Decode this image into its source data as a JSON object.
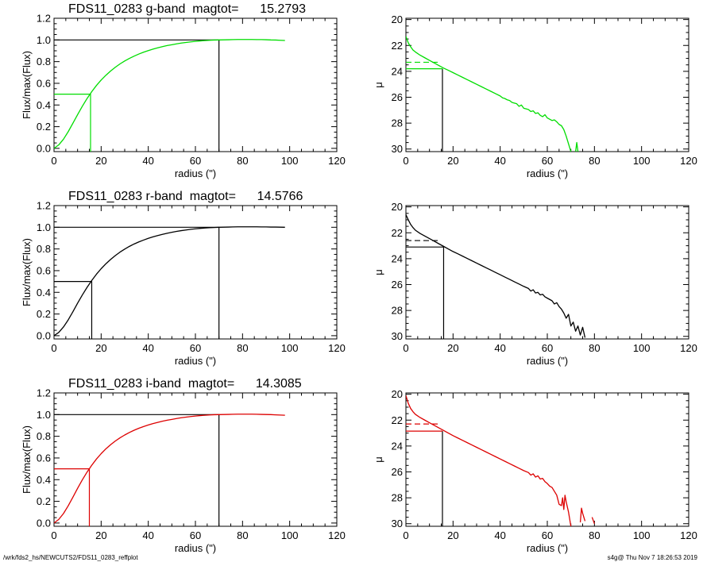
{
  "footer": {
    "left": "/wrk/fds2_hs/NEWCUTS2/FDS11_0283_reffplot",
    "right": "s4g@  Thu Nov  7 18:26:53 2019"
  },
  "colors": {
    "g": "#00dd00",
    "r": "#000000",
    "i": "#dd0000",
    "frame": "#000000"
  },
  "chart_data": [
    {
      "type": "line",
      "panel": "g-band-growth-curve",
      "title": "FDS11_0283 g-band  magtot=      15.2793",
      "xlabel": "radius (\")",
      "ylabel": "Flux/max(Flux)",
      "xlim": [
        0,
        120
      ],
      "ylim": [
        -0.03,
        1.2
      ],
      "xticks": [
        "0",
        "20",
        "40",
        "60",
        "80",
        "100",
        "120"
      ],
      "yticks": [
        "0.0",
        "0.2",
        "0.4",
        "0.6",
        "0.8",
        "1.0",
        "1.2"
      ],
      "series": [
        {
          "color": "#00dd00",
          "x": [
            0,
            2,
            4,
            6,
            8,
            10,
            12,
            14,
            16,
            18,
            20,
            22,
            24,
            26,
            28,
            30,
            32,
            34,
            36,
            38,
            40,
            42,
            44,
            46,
            48,
            50,
            52,
            54,
            56,
            58,
            60,
            62,
            64,
            66,
            68,
            70,
            72,
            74,
            76,
            78,
            80,
            82,
            84,
            86,
            88,
            90,
            92,
            94,
            96,
            98
          ],
          "y": [
            0.0,
            0.032,
            0.084,
            0.153,
            0.231,
            0.311,
            0.388,
            0.459,
            0.523,
            0.58,
            0.63,
            0.674,
            0.713,
            0.748,
            0.779,
            0.806,
            0.83,
            0.851,
            0.87,
            0.887,
            0.902,
            0.915,
            0.927,
            0.938,
            0.948,
            0.956,
            0.964,
            0.971,
            0.977,
            0.982,
            0.987,
            0.991,
            0.994,
            0.997,
            0.999,
            1.0,
            1.001,
            1.002,
            1.003,
            1.004,
            1.004,
            1.004,
            1.004,
            1.003,
            1.003,
            1.002,
            1.0,
            0.999,
            0.997,
            0.995
          ]
        }
      ],
      "guides": {
        "half_light": {
          "x": 15.5,
          "y": 0.5,
          "color": "#00dd00"
        },
        "total": {
          "x": 70,
          "y": 1.0,
          "color": "#000000"
        }
      }
    },
    {
      "type": "line",
      "panel": "g-band-surface-brightness",
      "title": "",
      "xlabel": "radius (\")",
      "ylabel": "μ",
      "xlim": [
        0,
        120
      ],
      "ylim": [
        30.2,
        19.9
      ],
      "xticks": [
        "0",
        "20",
        "40",
        "60",
        "80",
        "100",
        "120"
      ],
      "yticks": [
        "20",
        "22",
        "24",
        "26",
        "28",
        "30"
      ],
      "series": [
        {
          "color": "#00dd00",
          "x": [
            0,
            1,
            2,
            3,
            4,
            6,
            8,
            10,
            12,
            14,
            16,
            18,
            20,
            22,
            24,
            26,
            28,
            30,
            32,
            34,
            36,
            38,
            40,
            41,
            42,
            43,
            44,
            45,
            46,
            47,
            48,
            49,
            50,
            51,
            52,
            53,
            54,
            55,
            56,
            57,
            58,
            59,
            60,
            61,
            62,
            63,
            64,
            65,
            66,
            67,
            68,
            69,
            70,
            null,
            72,
            72.5,
            73
          ],
          "y": [
            21.3,
            21.8,
            22.1,
            22.35,
            22.5,
            22.75,
            22.95,
            23.15,
            23.35,
            23.55,
            23.75,
            23.92,
            24.1,
            24.28,
            24.46,
            24.64,
            24.82,
            25.0,
            25.18,
            25.36,
            25.54,
            25.72,
            25.9,
            26.05,
            26.1,
            26.2,
            26.25,
            26.4,
            26.45,
            26.5,
            26.7,
            26.6,
            26.85,
            26.9,
            26.95,
            27.1,
            27.05,
            27.25,
            27.2,
            27.4,
            27.5,
            27.35,
            27.6,
            27.7,
            27.8,
            27.75,
            27.9,
            28.1,
            28.2,
            28.5,
            29.0,
            29.6,
            30.2,
            null,
            30.2,
            29.5,
            30.2
          ]
        }
      ],
      "guides": {
        "mu_eff": {
          "x": 15.5,
          "y": 23.8
        },
        "mu_mean_eff_dashed": {
          "x_end": 14,
          "y": 23.3
        }
      }
    },
    {
      "type": "line",
      "panel": "r-band-growth-curve",
      "title": "FDS11_0283 r-band  magtot=      14.5766",
      "xlabel": "radius (\")",
      "ylabel": "Flux/max(Flux)",
      "xlim": [
        0,
        120
      ],
      "ylim": [
        -0.03,
        1.2
      ],
      "xticks": [
        "0",
        "20",
        "40",
        "60",
        "80",
        "100",
        "120"
      ],
      "yticks": [
        "0.0",
        "0.2",
        "0.4",
        "0.6",
        "0.8",
        "1.0",
        "1.2"
      ],
      "series": [
        {
          "color": "#000000",
          "x": [
            0,
            2,
            4,
            6,
            8,
            10,
            12,
            14,
            16,
            18,
            20,
            22,
            24,
            26,
            28,
            30,
            32,
            34,
            36,
            38,
            40,
            42,
            44,
            46,
            48,
            50,
            52,
            54,
            56,
            58,
            60,
            62,
            64,
            66,
            68,
            70,
            72,
            74,
            76,
            78,
            80,
            82,
            84,
            86,
            88,
            90,
            92,
            94,
            96,
            98
          ],
          "y": [
            0.0,
            0.03,
            0.08,
            0.145,
            0.22,
            0.3,
            0.375,
            0.445,
            0.509,
            0.567,
            0.618,
            0.663,
            0.703,
            0.739,
            0.771,
            0.799,
            0.824,
            0.846,
            0.865,
            0.882,
            0.898,
            0.912,
            0.924,
            0.935,
            0.945,
            0.954,
            0.962,
            0.969,
            0.975,
            0.981,
            0.986,
            0.99,
            0.993,
            0.996,
            0.998,
            1.0,
            1.001,
            1.002,
            1.003,
            1.004,
            1.004,
            1.004,
            1.004,
            1.004,
            1.003,
            1.003,
            1.002,
            1.002,
            1.001,
            1.0
          ]
        }
      ],
      "guides": {
        "half_light": {
          "x": 16,
          "y": 0.5,
          "color": "#000000"
        },
        "total": {
          "x": 70,
          "y": 1.0,
          "color": "#000000"
        }
      }
    },
    {
      "type": "line",
      "panel": "r-band-surface-brightness",
      "title": "",
      "xlabel": "radius (\")",
      "ylabel": "μ",
      "xlim": [
        0,
        120
      ],
      "ylim": [
        30.2,
        19.9
      ],
      "xticks": [
        "0",
        "20",
        "40",
        "60",
        "80",
        "100",
        "120"
      ],
      "yticks": [
        "20",
        "22",
        "24",
        "26",
        "28",
        "30"
      ],
      "series": [
        {
          "color": "#000000",
          "x": [
            0,
            1,
            2,
            3,
            4,
            6,
            8,
            10,
            12,
            14,
            16,
            18,
            20,
            22,
            24,
            26,
            28,
            30,
            32,
            34,
            36,
            38,
            40,
            42,
            44,
            46,
            48,
            50,
            52,
            53,
            54,
            55,
            56,
            57,
            58,
            59,
            60,
            61,
            62,
            63,
            64,
            65,
            66,
            67,
            68,
            69,
            70,
            71,
            72,
            73,
            74,
            75,
            76
          ],
          "y": [
            20.6,
            21.0,
            21.35,
            21.6,
            21.8,
            22.05,
            22.25,
            22.45,
            22.65,
            22.85,
            23.05,
            23.25,
            23.45,
            23.62,
            23.8,
            23.98,
            24.16,
            24.34,
            24.52,
            24.7,
            24.88,
            25.06,
            25.24,
            25.42,
            25.6,
            25.78,
            25.96,
            26.14,
            26.3,
            26.5,
            26.4,
            26.65,
            26.6,
            26.8,
            26.75,
            26.95,
            27.05,
            27.15,
            27.25,
            27.5,
            27.4,
            27.7,
            27.9,
            28.2,
            28.6,
            28.3,
            29.2,
            28.9,
            29.6,
            29.2,
            29.9,
            29.3,
            30.1
          ]
        }
      ],
      "guides": {
        "mu_eff": {
          "x": 16,
          "y": 23.1
        },
        "mu_mean_eff_dashed": {
          "x_end": 14,
          "y": 22.6
        }
      }
    },
    {
      "type": "line",
      "panel": "i-band-growth-curve",
      "title": "FDS11_0283 i-band  magtot=      14.3085",
      "xlabel": "radius (\")",
      "ylabel": "Flux/max(Flux)",
      "xlim": [
        0,
        120
      ],
      "ylim": [
        -0.03,
        1.2
      ],
      "xticks": [
        "0",
        "20",
        "40",
        "60",
        "80",
        "100",
        "120"
      ],
      "yticks": [
        "0.0",
        "0.2",
        "0.4",
        "0.6",
        "0.8",
        "1.0",
        "1.2"
      ],
      "series": [
        {
          "color": "#dd0000",
          "x": [
            0,
            2,
            4,
            6,
            8,
            10,
            12,
            14,
            16,
            18,
            20,
            22,
            24,
            26,
            28,
            30,
            32,
            34,
            36,
            38,
            40,
            42,
            44,
            46,
            48,
            50,
            52,
            54,
            56,
            58,
            60,
            62,
            64,
            66,
            68,
            70,
            72,
            74,
            76,
            78,
            80,
            82,
            84,
            86,
            88,
            90,
            92,
            94,
            96,
            98
          ],
          "y": [
            0.0,
            0.033,
            0.087,
            0.158,
            0.238,
            0.32,
            0.398,
            0.469,
            0.533,
            0.59,
            0.64,
            0.684,
            0.722,
            0.756,
            0.786,
            0.812,
            0.835,
            0.856,
            0.874,
            0.89,
            0.904,
            0.917,
            0.928,
            0.939,
            0.948,
            0.956,
            0.964,
            0.971,
            0.977,
            0.982,
            0.987,
            0.991,
            0.994,
            0.997,
            0.999,
            1.0,
            1.001,
            1.002,
            1.003,
            1.004,
            1.004,
            1.004,
            1.004,
            1.003,
            1.002,
            1.001,
            1.0,
            0.998,
            0.996,
            0.994
          ]
        }
      ],
      "guides": {
        "half_light": {
          "x": 15,
          "y": 0.5,
          "color": "#dd0000"
        },
        "total": {
          "x": 70,
          "y": 1.0,
          "color": "#000000"
        }
      }
    },
    {
      "type": "line",
      "panel": "i-band-surface-brightness",
      "title": "",
      "xlabel": "radius (\")",
      "ylabel": "μ",
      "xlim": [
        0,
        120
      ],
      "ylim": [
        30.2,
        19.9
      ],
      "xticks": [
        "0",
        "20",
        "40",
        "60",
        "80",
        "100",
        "120"
      ],
      "yticks": [
        "20",
        "22",
        "24",
        "26",
        "28",
        "30"
      ],
      "series": [
        {
          "color": "#dd0000",
          "x": [
            0,
            1,
            2,
            3,
            4,
            6,
            8,
            10,
            12,
            14,
            16,
            18,
            20,
            22,
            24,
            26,
            28,
            30,
            32,
            34,
            36,
            38,
            40,
            42,
            44,
            46,
            48,
            50,
            52,
            53,
            54,
            55,
            56,
            57,
            58,
            59,
            60,
            61,
            62,
            63,
            64,
            65,
            66,
            66.5,
            67,
            67.5,
            68,
            69,
            70,
            null,
            74,
            74.5,
            75,
            76,
            null,
            79,
            80
          ],
          "y": [
            20.1,
            20.7,
            21.1,
            21.35,
            21.55,
            21.8,
            22.0,
            22.2,
            22.4,
            22.6,
            22.8,
            23.0,
            23.2,
            23.38,
            23.56,
            23.74,
            23.92,
            24.1,
            24.28,
            24.46,
            24.64,
            24.82,
            25.0,
            25.18,
            25.36,
            25.54,
            25.72,
            25.9,
            26.05,
            26.25,
            26.15,
            26.4,
            26.3,
            26.55,
            26.5,
            26.75,
            26.9,
            27.1,
            27.2,
            27.5,
            27.8,
            28.5,
            28.6,
            28.0,
            28.9,
            27.8,
            28.3,
            29.1,
            30.2,
            null,
            29.9,
            28.8,
            29.2,
            29.8,
            null,
            29.5,
            30.0
          ]
        }
      ],
      "guides": {
        "mu_eff": {
          "x": 15.5,
          "y": 22.85
        },
        "mu_mean_eff_dashed": {
          "x_end": 14,
          "y": 22.3
        }
      }
    }
  ]
}
